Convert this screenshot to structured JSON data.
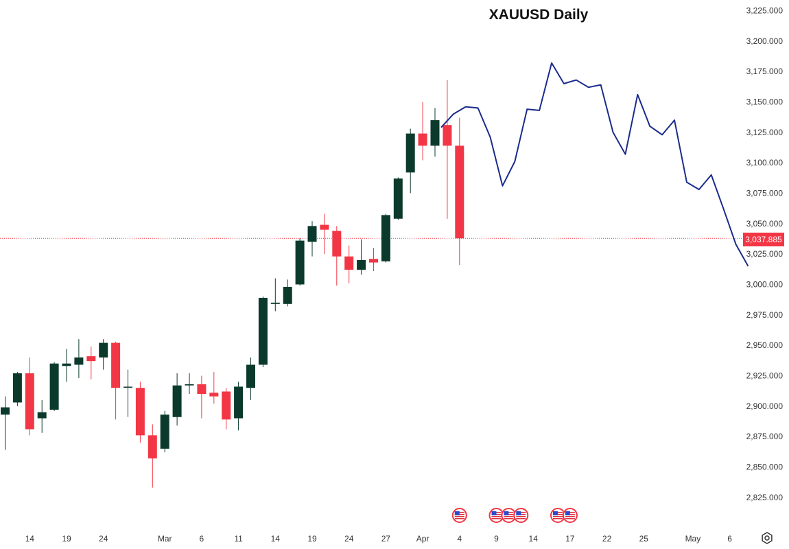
{
  "chart_data": {
    "type": "candlestick",
    "title": "XAUUSD Daily",
    "last_price_label": "3,037.885",
    "colors": {
      "up": "#0b3a2c",
      "down": "#f23645",
      "forecast": "#1a2b8c",
      "price_line": "#f23645",
      "axis_text": "#333333"
    },
    "ylim": [
      2810,
      3235
    ],
    "y_ticks": [
      {
        "value": 3225,
        "label": "3,225.000"
      },
      {
        "value": 3200,
        "label": "3,200.000"
      },
      {
        "value": 3175,
        "label": "3,175.000"
      },
      {
        "value": 3150,
        "label": "3,150.000"
      },
      {
        "value": 3125,
        "label": "3,125.000"
      },
      {
        "value": 3100,
        "label": "3,100.000"
      },
      {
        "value": 3075,
        "label": "3,075.000"
      },
      {
        "value": 3050,
        "label": "3,050.000"
      },
      {
        "value": 3025,
        "label": "3,025.000"
      },
      {
        "value": 3000,
        "label": "3,000.000"
      },
      {
        "value": 2975,
        "label": "2,975.000"
      },
      {
        "value": 2950,
        "label": "2,950.000"
      },
      {
        "value": 2925,
        "label": "2,925.000"
      },
      {
        "value": 2900,
        "label": "2,900.000"
      },
      {
        "value": 2875,
        "label": "2,875.000"
      },
      {
        "value": 2850,
        "label": "2,850.000"
      },
      {
        "value": 2825,
        "label": "2,825.000"
      }
    ],
    "x_ticks": [
      {
        "slot": 2,
        "label": "14"
      },
      {
        "slot": 5,
        "label": "19"
      },
      {
        "slot": 8,
        "label": "24"
      },
      {
        "slot": 13,
        "label": "Mar"
      },
      {
        "slot": 16,
        "label": "6"
      },
      {
        "slot": 19,
        "label": "11"
      },
      {
        "slot": 22,
        "label": "14"
      },
      {
        "slot": 25,
        "label": "19"
      },
      {
        "slot": 28,
        "label": "24"
      },
      {
        "slot": 31,
        "label": "27"
      },
      {
        "slot": 34,
        "label": "Apr"
      },
      {
        "slot": 37,
        "label": "4"
      },
      {
        "slot": 40,
        "label": "9"
      },
      {
        "slot": 43,
        "label": "14"
      },
      {
        "slot": 46,
        "label": "17"
      },
      {
        "slot": 49,
        "label": "22"
      },
      {
        "slot": 52,
        "label": "25"
      },
      {
        "slot": 56,
        "label": "May"
      },
      {
        "slot": 59,
        "label": "6"
      }
    ],
    "candles": [
      {
        "o": 2893,
        "h": 2908,
        "l": 2864,
        "c": 2899
      },
      {
        "o": 2903,
        "h": 2928,
        "l": 2900,
        "c": 2927
      },
      {
        "o": 2927,
        "h": 2940,
        "l": 2876,
        "c": 2881
      },
      {
        "o": 2890,
        "h": 2905,
        "l": 2878,
        "c": 2895
      },
      {
        "o": 2897,
        "h": 2936,
        "l": 2896,
        "c": 2935
      },
      {
        "o": 2933,
        "h": 2947,
        "l": 2920,
        "c": 2935
      },
      {
        "o": 2934,
        "h": 2955,
        "l": 2923,
        "c": 2940
      },
      {
        "o": 2941,
        "h": 2949,
        "l": 2922,
        "c": 2937
      },
      {
        "o": 2940,
        "h": 2955,
        "l": 2930,
        "c": 2952
      },
      {
        "o": 2952,
        "h": 2953,
        "l": 2889,
        "c": 2915
      },
      {
        "o": 2916,
        "h": 2930,
        "l": 2891,
        "c": 2916
      },
      {
        "o": 2915,
        "h": 2920,
        "l": 2870,
        "c": 2876
      },
      {
        "o": 2876,
        "h": 2885,
        "l": 2833,
        "c": 2857
      },
      {
        "o": 2865,
        "h": 2896,
        "l": 2862,
        "c": 2893
      },
      {
        "o": 2891,
        "h": 2927,
        "l": 2884,
        "c": 2917
      },
      {
        "o": 2917,
        "h": 2927,
        "l": 2910,
        "c": 2918
      },
      {
        "o": 2918,
        "h": 2925,
        "l": 2890,
        "c": 2910
      },
      {
        "o": 2911,
        "h": 2928,
        "l": 2902,
        "c": 2908
      },
      {
        "o": 2912,
        "h": 2915,
        "l": 2881,
        "c": 2889
      },
      {
        "o": 2890,
        "h": 2920,
        "l": 2880,
        "c": 2916
      },
      {
        "o": 2915,
        "h": 2940,
        "l": 2905,
        "c": 2934
      },
      {
        "o": 2934,
        "h": 2990,
        "l": 2932,
        "c": 2989
      },
      {
        "o": 2984,
        "h": 3005,
        "l": 2978,
        "c": 2985
      },
      {
        "o": 2984,
        "h": 3004,
        "l": 2982,
        "c": 2998
      },
      {
        "o": 3000,
        "h": 3038,
        "l": 2999,
        "c": 3036
      },
      {
        "o": 3035,
        "h": 3052,
        "l": 3023,
        "c": 3048
      },
      {
        "o": 3049,
        "h": 3058,
        "l": 3025,
        "c": 3045
      },
      {
        "o": 3044,
        "h": 3048,
        "l": 2999,
        "c": 3023
      },
      {
        "o": 3023,
        "h": 3032,
        "l": 3001,
        "c": 3012
      },
      {
        "o": 3012,
        "h": 3037,
        "l": 3008,
        "c": 3020
      },
      {
        "o": 3021,
        "h": 3030,
        "l": 3011,
        "c": 3018
      },
      {
        "o": 3019,
        "h": 3058,
        "l": 3018,
        "c": 3057
      },
      {
        "o": 3054,
        "h": 3088,
        "l": 3053,
        "c": 3087
      },
      {
        "o": 3092,
        "h": 3128,
        "l": 3075,
        "c": 3124
      },
      {
        "o": 3124,
        "h": 3150,
        "l": 3102,
        "c": 3114
      },
      {
        "o": 3114,
        "h": 3145,
        "l": 3105,
        "c": 3135
      },
      {
        "o": 3131,
        "h": 3168,
        "l": 3054,
        "c": 3114
      },
      {
        "o": 3114,
        "h": 3137,
        "l": 3016,
        "c": 3037.885
      }
    ],
    "forecast": {
      "name": "",
      "points": [
        {
          "slot": 35.5,
          "value": 3129
        },
        {
          "slot": 36.5,
          "value": 3140
        },
        {
          "slot": 37.5,
          "value": 3146
        },
        {
          "slot": 38.5,
          "value": 3145
        },
        {
          "slot": 39.5,
          "value": 3121
        },
        {
          "slot": 40.5,
          "value": 3081
        },
        {
          "slot": 41.5,
          "value": 3101
        },
        {
          "slot": 42.5,
          "value": 3144
        },
        {
          "slot": 43.5,
          "value": 3143
        },
        {
          "slot": 44.5,
          "value": 3182
        },
        {
          "slot": 45.5,
          "value": 3165
        },
        {
          "slot": 46.5,
          "value": 3168
        },
        {
          "slot": 47.5,
          "value": 3162
        },
        {
          "slot": 48.5,
          "value": 3164
        },
        {
          "slot": 49.5,
          "value": 3125
        },
        {
          "slot": 50.5,
          "value": 3107
        },
        {
          "slot": 51.5,
          "value": 3156
        },
        {
          "slot": 52.5,
          "value": 3130
        },
        {
          "slot": 53.5,
          "value": 3123
        },
        {
          "slot": 54.5,
          "value": 3135
        },
        {
          "slot": 55.5,
          "value": 3084
        },
        {
          "slot": 56.5,
          "value": 3078
        },
        {
          "slot": 57.5,
          "value": 3090
        },
        {
          "slot": 58.5,
          "value": 3062
        },
        {
          "slot": 59.5,
          "value": 3033
        },
        {
          "slot": 60.5,
          "value": 3015
        }
      ]
    },
    "events": [
      {
        "slot": 37,
        "icon": "us-flag-icon"
      },
      {
        "slot": 40,
        "icon": "us-flag-icon"
      },
      {
        "slot": 41,
        "icon": "us-flag-icon"
      },
      {
        "slot": 42,
        "icon": "us-flag-icon"
      },
      {
        "slot": 45,
        "icon": "us-flag-icon"
      },
      {
        "slot": 46,
        "icon": "us-flag-icon"
      }
    ]
  },
  "settings_icon": "settings-icon"
}
